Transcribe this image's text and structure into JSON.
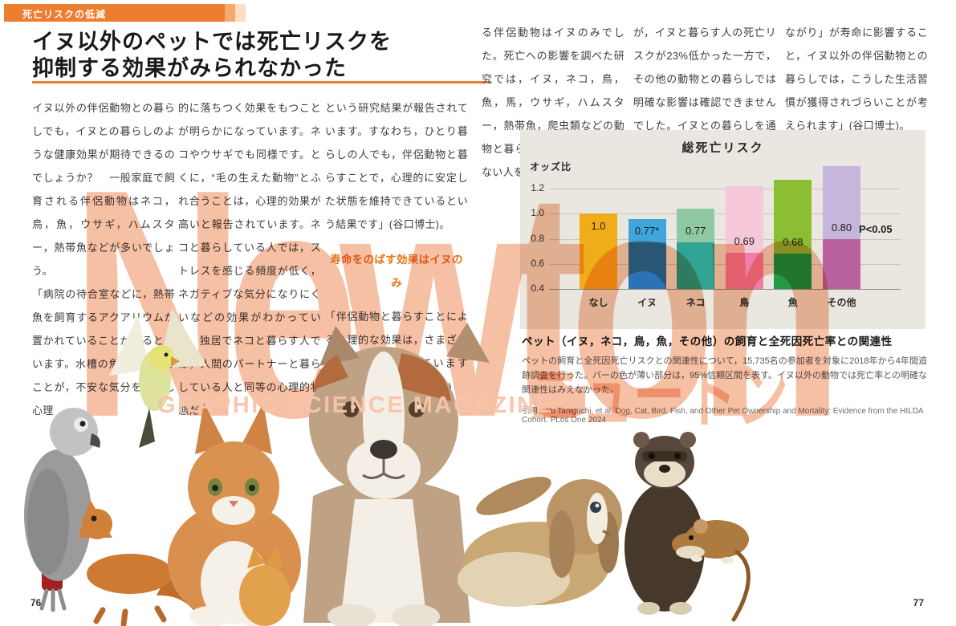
{
  "page": {
    "tag": "死亡リスクの低減",
    "headline_line1": "イヌ以外のペットでは死亡リスクを",
    "headline_line2": "抑制する効果がみられなかった",
    "page_number_left": "76",
    "page_number_right": "77",
    "accent_color": "#ED7D2F",
    "watermark_color": "#F6C0A5"
  },
  "article": {
    "columns": [
      {
        "paragraphs": [
          "イヌ以外の伴侶動物との暮らしでも，イヌとの暮らしのような健康効果が期待できるのでしょうか？　一般家庭で飼育される伴侶動物はネコ，鳥，魚，ウサギ，ハムスター，熱帯魚などが多いでしょう。",
          "「病院の待合室などに，熱帯魚を飼育するアクアリウムが置かれていることがあると思います。水槽の魚をながめることが，不安な気分を減らし心理"
        ]
      },
      {
        "paragraphs": [
          "的に落ちつく効果をもつことが明らかになっています。ネコやウサギでも同様です。とくに，“毛の生えた動物”とふれ合うことは，心理的効果が高いと報告されています。ネコと暮らしている人では，ストレスを感じる頻度が低く，ネガティブな気分になりにくいなどの効果がわかっていて，独居でネコと暮らす人では，人間のパートナーと暮らしている人と同等の心理的状態だ"
        ]
      },
      {
        "paragraphs": [
          "という研究結果が報告されています。すなわち，ひとり暮らしの人でも，伴侶動物と暮らすことで，心理的に安定した状態を維持できているという結果です」(谷口博士)。"
        ],
        "subhead": "寿命をのばす効果はイヌのみ",
        "paragraphs_after": [
          "「伴侶動物と暮らすことによる心理的な効果は，さまざまな動物で確認されていますが，寿命に直接影響してい"
        ]
      },
      {
        "paragraphs": [
          "る伴侶動物はイヌのみでした。死亡への影響を調べた研究では，イヌ，ネコ，鳥，魚，馬，ウサギ，ハムスター，熱帯魚，爬虫類などの動物と暮らす人と伴侶動物のいない人を比較しています"
        ]
      },
      {
        "paragraphs": [
          "が，イヌと暮らす人の死亡リスクが23%低かった一方で，その他の動物との暮らしでは明確な影響は確認できませんでした。イヌとの暮らしを通じて得られる「運動習慣」や「社会とのつ"
        ]
      },
      {
        "paragraphs": [
          "ながり」が寿命に影響すること，イヌ以外の伴侶動物との暮らしでは，こうした生活習慣が獲得されづらいことが考えられます」(谷口博士)。"
        ]
      }
    ]
  },
  "chart_data": {
    "type": "bar",
    "title": "総死亡リスク",
    "ylabel": "オッズ比",
    "categories": [
      "なし",
      "イヌ",
      "ネコ",
      "鳥",
      "魚",
      "その他"
    ],
    "odds_ratio": [
      1.0,
      0.77,
      0.77,
      0.69,
      0.68,
      0.8
    ],
    "value_labels": [
      "1.0",
      "0.77*",
      "0.77",
      "0.69",
      "0.68",
      "0.80"
    ],
    "ci_upper": [
      1.0,
      0.96,
      1.04,
      1.22,
      1.27,
      1.38
    ],
    "baseline": 0.4,
    "yticks": [
      0.4,
      0.6,
      0.8,
      1.0,
      1.2
    ],
    "ylim": [
      0.4,
      1.4
    ],
    "annotation": "P<0.05",
    "bar_colors_solid": [
      "#F0AD1A",
      "#2B72B7",
      "#30A392",
      "#EE7FAA",
      "#229B44",
      "#BA62A0"
    ],
    "bar_colors_ci": [
      "#F0AD1A",
      "#3FA6DC",
      "#8FC9A4",
      "#F6C8D9",
      "#8CBE33",
      "#C6B6DB"
    ],
    "legend_note": "バーの色が薄い部分は95%信頼区間"
  },
  "caption": {
    "title": "ペット（イヌ，ネコ，鳥，魚，その他）の飼育と全死因死亡率との関連性",
    "body": "ペットの飼育と全死因死亡リスクとの関連性について，15,735名の参加者を対象に2018年から4年間追跡調査を行った。バーの色が薄い部分は，95%信頼区間を表す。イヌ以外の動物では死亡率との明確な関連性はみえなかった。",
    "citation": "引用：Yu Taniguchi, et al. Dog, Cat, Bird, Fish, and Other Pet Ownership and Mortality: Evidence from the HILDA Cohort. PLos One 2024"
  },
  "watermark": {
    "newton": "Newton",
    "magazine": "GRAPHIC SCIENCE MAGAZINE",
    "katakana": "ニュートン"
  },
  "animals": [
    "budgerigar-image",
    "african-grey-parrot-image",
    "bearded-dragon-image",
    "ginger-kitten-image",
    "orange-cat-image",
    "dog-amstaff-image",
    "lop-rabbit-image",
    "ferret-image",
    "harvest-mouse-image"
  ]
}
